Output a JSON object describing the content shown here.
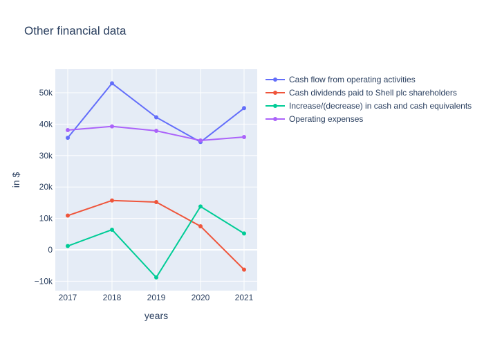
{
  "chart_data": {
    "type": "line",
    "title": "Other financial data",
    "xlabel": "years",
    "ylabel": "in $",
    "x": [
      "2017",
      "2018",
      "2019",
      "2020",
      "2021"
    ],
    "y_ticks": [
      -10000,
      0,
      10000,
      20000,
      30000,
      40000,
      50000
    ],
    "y_tick_labels": [
      "−10k",
      "0",
      "10k",
      "20k",
      "30k",
      "40k",
      "50k"
    ],
    "ylim": [
      -13000,
      57500
    ],
    "grid": true,
    "legend_position": "top-right",
    "series": [
      {
        "name": "Cash flow from operating activities",
        "color": "#636efa",
        "values": [
          35650,
          53000,
          42200,
          34300,
          45100
        ]
      },
      {
        "name": "Cash dividends paid to Shell plc shareholders",
        "color": "#ef553b",
        "values": [
          10900,
          15700,
          15200,
          7500,
          -6300
        ]
      },
      {
        "name": "Increase/(decrease) in cash and cash equivalents",
        "color": "#00cc96",
        "values": [
          1200,
          6400,
          -8800,
          13800,
          5200
        ]
      },
      {
        "name": "Operating expenses",
        "color": "#ab63fa",
        "values": [
          38100,
          39300,
          37900,
          34800,
          35900
        ]
      }
    ]
  }
}
